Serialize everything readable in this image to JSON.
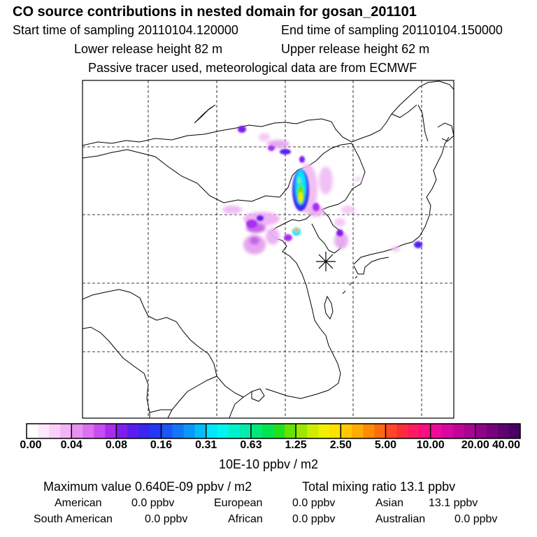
{
  "header": {
    "title": "CO  source contributions in nested domain for gosan_201101",
    "start_label": "Start time of sampling 20110104.120000",
    "end_label": "End time of sampling 20110104.150000",
    "lower_label": "Lower release height   82 m",
    "upper_label": "Upper release height   62 m",
    "tracer_note": "Passive tracer used, meteorological data are from ECMWF"
  },
  "chart_data": {
    "type": "heatmap",
    "title": "CO  source contributions in nested domain for gosan_201101",
    "colorbar": {
      "tick_labels": [
        "0.00",
        "0.04",
        "0.08",
        "0.16",
        "0.31",
        "0.63",
        "1.25",
        "2.50",
        "5.00",
        "10.00",
        "20.00",
        "40.00"
      ],
      "unit_label": "10E-10 ppbv / m2",
      "colors": [
        "#ffffff",
        "#fde8fd",
        "#f9d0f9",
        "#f3b4f3",
        "#ea90ef",
        "#dd6ff0",
        "#c84cf2",
        "#a92df0",
        "#7f1cee",
        "#5a1df0",
        "#3a25f3",
        "#2438f6",
        "#1c55f8",
        "#1276fa",
        "#0a98fb",
        "#04bcfc",
        "#00e6fd",
        "#00f6ec",
        "#00f2cc",
        "#00eeaa",
        "#00e87a",
        "#00e450",
        "#22e020",
        "#66e400",
        "#9ae800",
        "#ccee00",
        "#f0f000",
        "#ffe000",
        "#ffc800",
        "#ffac00",
        "#ff8c00",
        "#ff6a10",
        "#ff4824",
        "#ff2c3c",
        "#ff1a60",
        "#ff0c84",
        "#f00a9a",
        "#d808a0",
        "#c0069a",
        "#a80592",
        "#900488",
        "#76037c",
        "#5e0270",
        "#480064"
      ]
    },
    "receptor_marker": "receptor-asterisk",
    "grid": true
  },
  "stats": {
    "max_value": "Maximum value  0.640E-09 ppbv / m2",
    "total_mixing": "Total mixing ratio       13.1 ppbv"
  },
  "regions": {
    "american_label": "American",
    "american_value": "0.0 ppbv",
    "european_label": "European",
    "european_value": "0.0 ppbv",
    "asian_label": "Asian",
    "asian_value": "13.1 ppbv",
    "south_american_label": "South American",
    "south_american_value": "0.0 ppbv",
    "african_label": "African",
    "african_value": "0.0 ppbv",
    "australian_label": "Australian",
    "australian_value": "0.0 ppbv"
  }
}
